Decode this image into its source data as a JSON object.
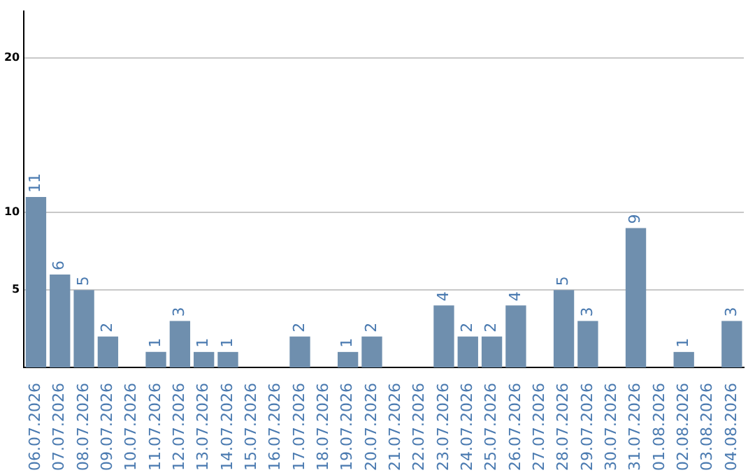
{
  "chart_data": {
    "type": "bar",
    "categories": [
      "06.07.2026",
      "07.07.2026",
      "08.07.2026",
      "09.07.2026",
      "10.07.2026",
      "11.07.2026",
      "12.07.2026",
      "13.07.2026",
      "14.07.2026",
      "15.07.2026",
      "16.07.2026",
      "17.07.2026",
      "18.07.2026",
      "19.07.2026",
      "20.07.2026",
      "21.07.2026",
      "22.07.2026",
      "23.07.2026",
      "24.07.2026",
      "25.07.2026",
      "26.07.2026",
      "27.07.2026",
      "28.07.2026",
      "29.07.2026",
      "30.07.2026",
      "31.07.2026",
      "01.08.2026",
      "02.08.2026",
      "03.08.2026",
      "04.08.2026"
    ],
    "values": [
      11,
      6,
      5,
      2,
      0,
      1,
      3,
      1,
      1,
      0,
      0,
      2,
      0,
      1,
      2,
      0,
      0,
      4,
      2,
      2,
      4,
      0,
      5,
      3,
      0,
      9,
      0,
      1,
      0,
      3
    ],
    "value_labels": [
      "11",
      "6",
      "5",
      "2",
      null,
      "1",
      "3",
      "1",
      "1",
      null,
      null,
      "2",
      null,
      "1",
      "2",
      null,
      null,
      "4",
      "2",
      "2",
      "4",
      null,
      "5",
      "3",
      null,
      "9",
      null,
      "1",
      null,
      "3"
    ],
    "color": "#6f8fae",
    "ylim": [
      0,
      23
    ],
    "yticks": [
      5,
      10,
      20
    ],
    "grid": "y",
    "legend": false
  }
}
